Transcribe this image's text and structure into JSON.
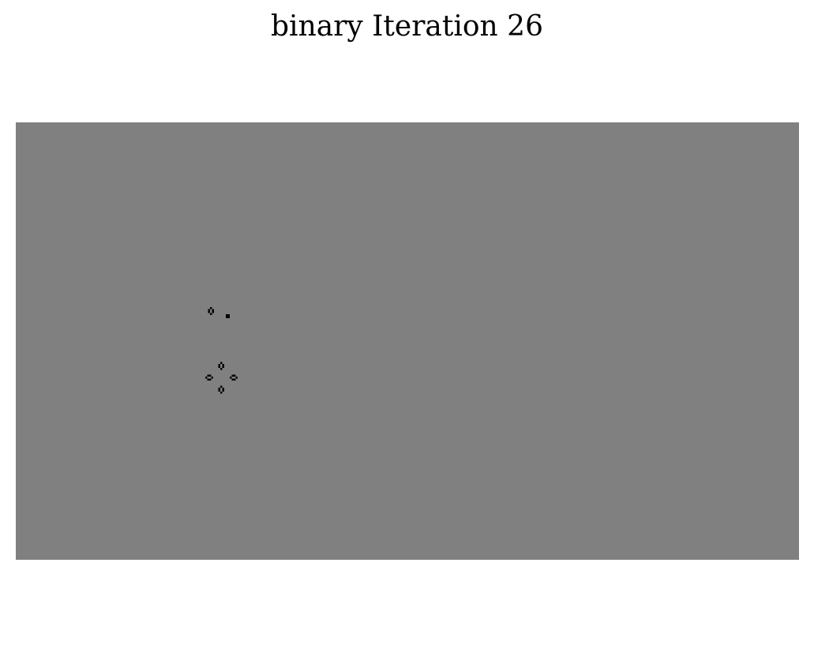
{
  "title": "binary Iteration 26",
  "colors": {
    "dead_cell": "#808080",
    "live_cell": "#000000",
    "page_background": "#ffffff"
  }
}
